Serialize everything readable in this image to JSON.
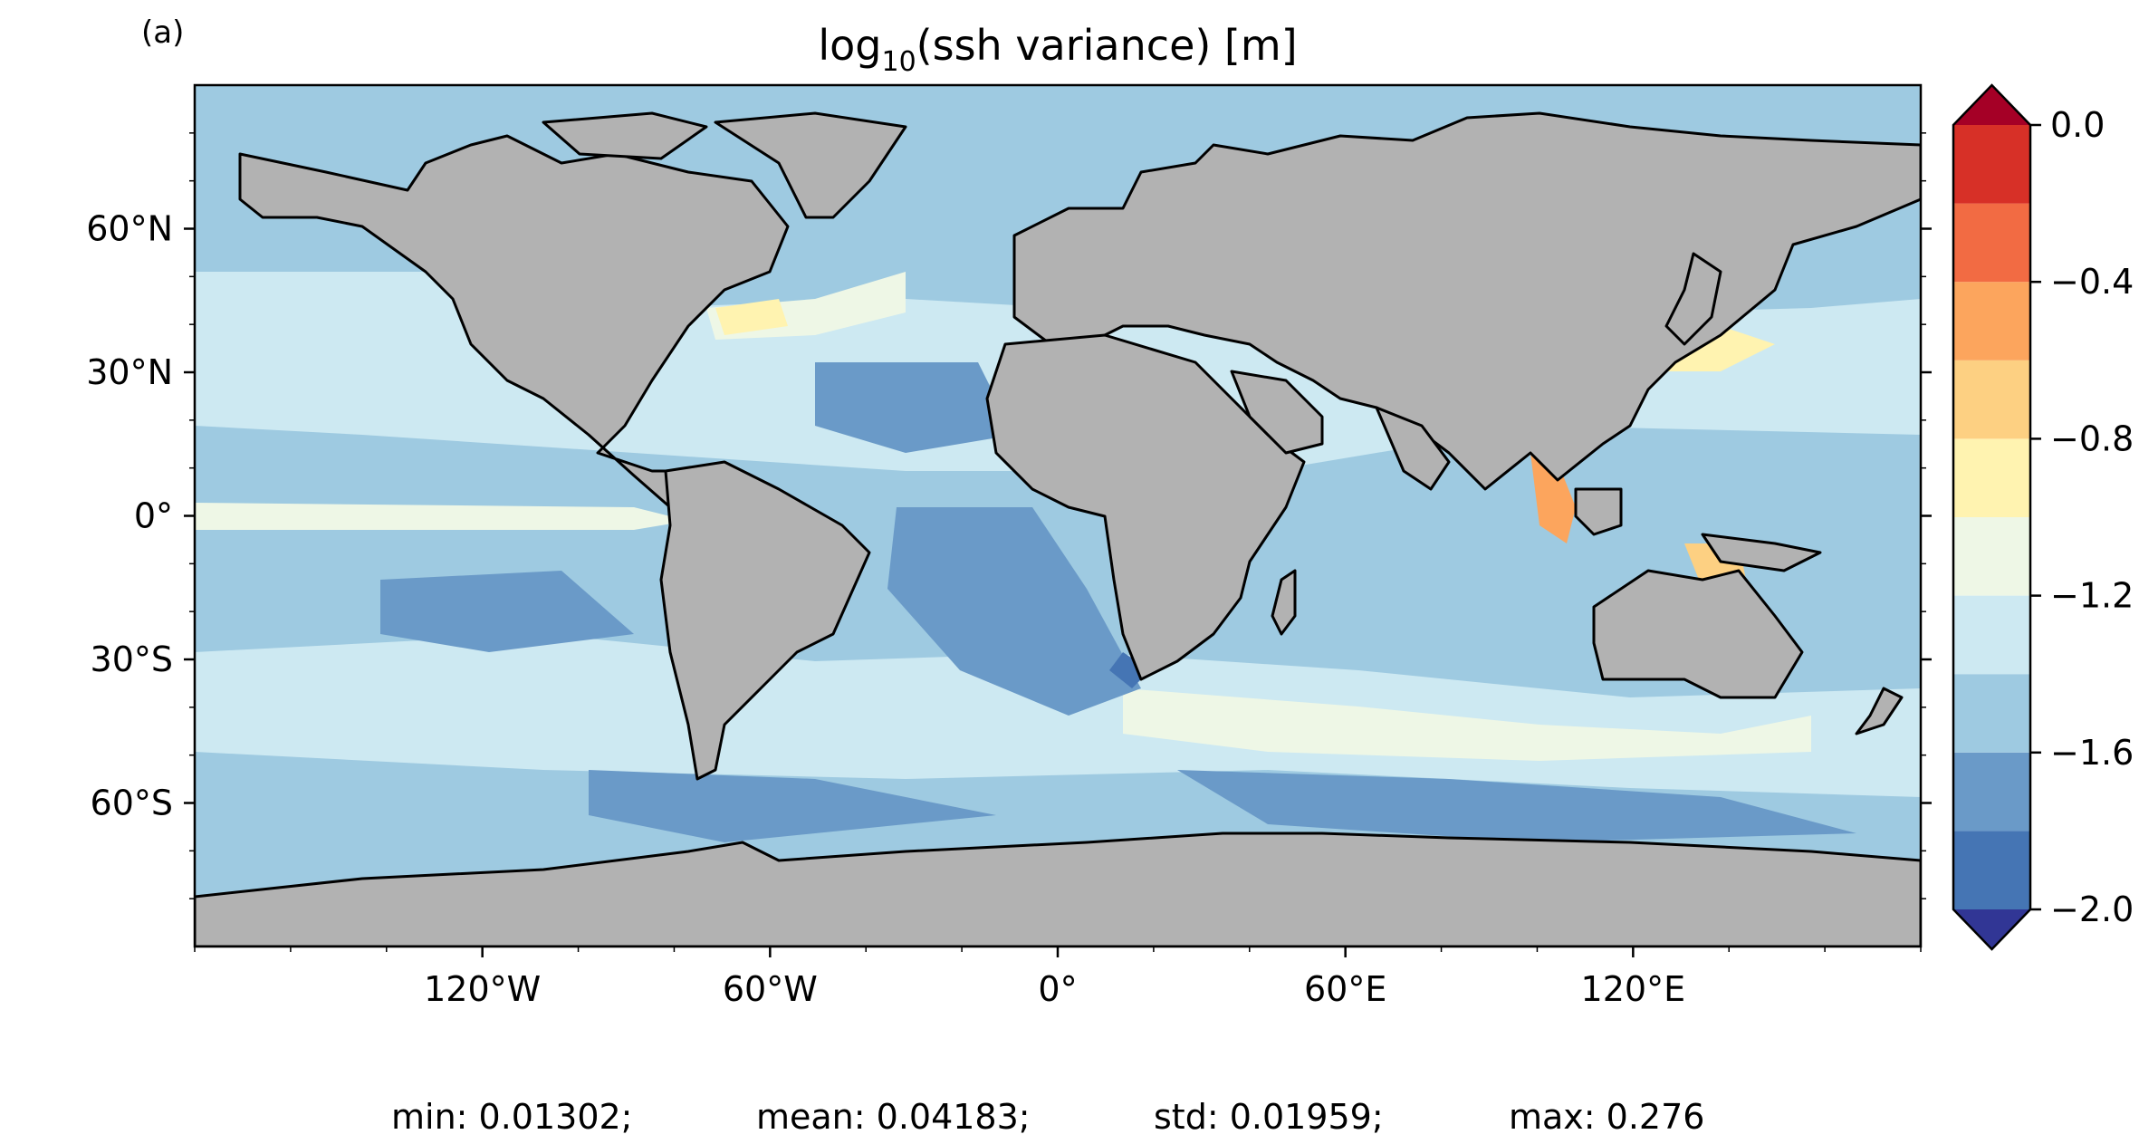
{
  "panel_label": "(a)",
  "title": {
    "main": "log",
    "sub": "10",
    "rest": "(ssh variance) [m]"
  },
  "map": {
    "projection": "PlateCarree",
    "extent": {
      "lon": [
        -180,
        180
      ],
      "lat": [
        -90,
        90
      ]
    },
    "land_color": "#b2b2b2",
    "coast_color": "#000000",
    "xticks": [
      {
        "lon": -120,
        "label": "120°W"
      },
      {
        "lon": -60,
        "label": "60°W"
      },
      {
        "lon": 0,
        "label": "0°"
      },
      {
        "lon": 60,
        "label": "60°E"
      },
      {
        "lon": 120,
        "label": "120°E"
      }
    ],
    "yticks": [
      {
        "lat": 60,
        "label": "60°N"
      },
      {
        "lat": 30,
        "label": "30°N"
      },
      {
        "lat": 0,
        "label": "0°"
      },
      {
        "lat": -30,
        "label": "30°S"
      },
      {
        "lat": -60,
        "label": "60°S"
      }
    ]
  },
  "colorbar": {
    "cmap": "RdYlBu_r",
    "levels": [
      -2.0,
      -1.8,
      -1.6,
      -1.4,
      -1.2,
      -1.0,
      -0.8,
      -0.6,
      -0.4,
      -0.2,
      0.0
    ],
    "colors": [
      "#4575b4",
      "#6a9ac8",
      "#9ecae1",
      "#cde9f2",
      "#eef7e6",
      "#fff3b0",
      "#fdd082",
      "#fca55d",
      "#f26b43",
      "#d73027"
    ],
    "extend_low": "#313695",
    "extend_high": "#a50026",
    "tick_labels": [
      {
        "value": 0.0,
        "label": "0.0"
      },
      {
        "value": -0.4,
        "label": "−0.4"
      },
      {
        "value": -0.8,
        "label": "−0.8"
      },
      {
        "value": -1.2,
        "label": "−1.2"
      },
      {
        "value": -1.6,
        "label": "−1.6"
      },
      {
        "value": -2.0,
        "label": "−2.0"
      }
    ]
  },
  "stats": {
    "min": "min: 0.01302;",
    "mean": "mean: 0.04183;",
    "std": "std: 0.01959;",
    "max": "max: 0.276"
  }
}
